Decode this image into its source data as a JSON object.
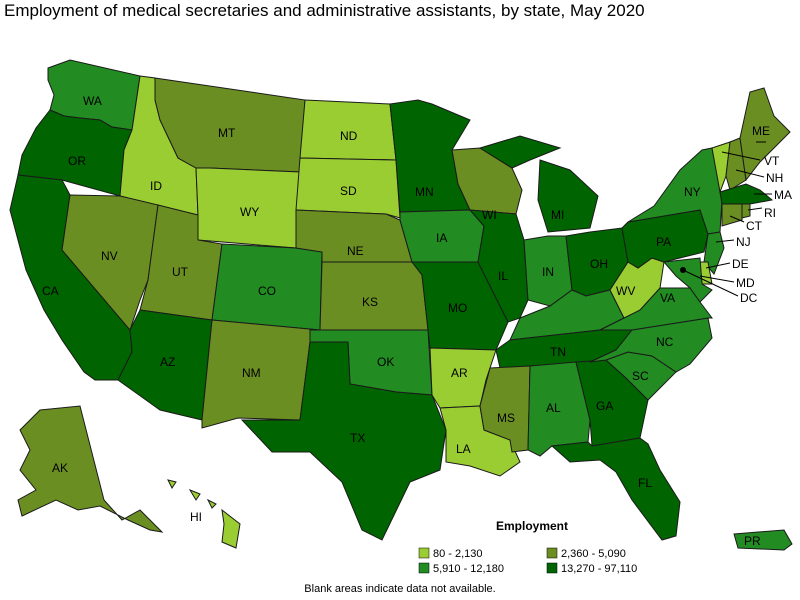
{
  "title": "Employment of medical secretaries and administrative assistants, by state, May 2020",
  "note": "Blank areas indicate data not available.",
  "colors": {
    "bin1": "#9acd32",
    "bin2": "#6b8e23",
    "bin3": "#228b22",
    "bin4": "#006400"
  },
  "legend": {
    "title": "Employment",
    "items": [
      {
        "label": "80 - 2,130",
        "color": "#9acd32"
      },
      {
        "label": "2,360 - 5,090",
        "color": "#6b8e23"
      },
      {
        "label": "5,910 - 12,180",
        "color": "#228b22"
      },
      {
        "label": "13,270 - 97,110",
        "color": "#006400"
      }
    ]
  },
  "states": {
    "WA": {
      "label": "WA",
      "bin": "bin3"
    },
    "OR": {
      "label": "OR",
      "bin": "bin4"
    },
    "CA": {
      "label": "CA",
      "bin": "bin4"
    },
    "ID": {
      "label": "ID",
      "bin": "bin1"
    },
    "NV": {
      "label": "NV",
      "bin": "bin2"
    },
    "MT": {
      "label": "MT",
      "bin": "bin2"
    },
    "WY": {
      "label": "WY",
      "bin": "bin1"
    },
    "UT": {
      "label": "UT",
      "bin": "bin2"
    },
    "AZ": {
      "label": "AZ",
      "bin": "bin4"
    },
    "CO": {
      "label": "CO",
      "bin": "bin3"
    },
    "NM": {
      "label": "NM",
      "bin": "bin2"
    },
    "ND": {
      "label": "ND",
      "bin": "bin1"
    },
    "SD": {
      "label": "SD",
      "bin": "bin1"
    },
    "NE": {
      "label": "NE",
      "bin": "bin2"
    },
    "KS": {
      "label": "KS",
      "bin": "bin2"
    },
    "OK": {
      "label": "OK",
      "bin": "bin3"
    },
    "TX": {
      "label": "TX",
      "bin": "bin4"
    },
    "MN": {
      "label": "MN",
      "bin": "bin4"
    },
    "IA": {
      "label": "IA",
      "bin": "bin3"
    },
    "MO": {
      "label": "MO",
      "bin": "bin4"
    },
    "AR": {
      "label": "AR",
      "bin": "bin1"
    },
    "LA": {
      "label": "LA",
      "bin": "bin1"
    },
    "WI": {
      "label": "WI",
      "bin": "bin2"
    },
    "IL": {
      "label": "IL",
      "bin": "bin4"
    },
    "MI": {
      "label": "MI",
      "bin": "bin4"
    },
    "IN": {
      "label": "IN",
      "bin": "bin3"
    },
    "OH": {
      "label": "OH",
      "bin": "bin4"
    },
    "KY": {
      "label": "",
      "bin": "bin3"
    },
    "TN": {
      "label": "TN",
      "bin": "bin4"
    },
    "MS": {
      "label": "MS",
      "bin": "bin2"
    },
    "AL": {
      "label": "AL",
      "bin": "bin3"
    },
    "GA": {
      "label": "GA",
      "bin": "bin4"
    },
    "FL": {
      "label": "FL",
      "bin": "bin4"
    },
    "SC": {
      "label": "SC",
      "bin": "bin3"
    },
    "NC": {
      "label": "NC",
      "bin": "bin3"
    },
    "VA": {
      "label": "VA",
      "bin": "bin3"
    },
    "WV": {
      "label": "WV",
      "bin": "bin1"
    },
    "PA": {
      "label": "PA",
      "bin": "bin4"
    },
    "NY": {
      "label": "NY",
      "bin": "bin3"
    },
    "VT": {
      "label": "VT",
      "bin": "bin1"
    },
    "NH": {
      "label": "NH",
      "bin": "bin2"
    },
    "ME": {
      "label": "ME",
      "bin": "bin2"
    },
    "MA": {
      "label": "MA",
      "bin": "bin4"
    },
    "RI": {
      "label": "RI",
      "bin": "bin2"
    },
    "CT": {
      "label": "CT",
      "bin": "bin2"
    },
    "NJ": {
      "label": "NJ",
      "bin": "bin3"
    },
    "DE": {
      "label": "DE",
      "bin": "bin1"
    },
    "MD": {
      "label": "MD",
      "bin": "bin3"
    },
    "DC": {
      "label": "DC",
      "bin": "bin4"
    },
    "AK": {
      "label": "AK",
      "bin": "bin2"
    },
    "HI": {
      "label": "HI",
      "bin": "bin1"
    },
    "PR": {
      "label": "PR",
      "bin": "bin3"
    }
  }
}
